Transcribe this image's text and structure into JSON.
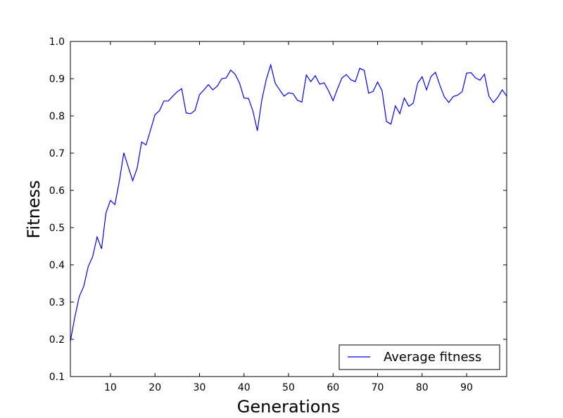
{
  "chart_data": {
    "type": "line",
    "xlabel": "Generations",
    "ylabel": "Fitness",
    "xlim": [
      1,
      99
    ],
    "ylim": [
      0.1,
      1.0
    ],
    "xticks": [
      "10",
      "20",
      "30",
      "40",
      "50",
      "60",
      "70",
      "80",
      "90"
    ],
    "yticks": [
      "0.1",
      "0.2",
      "0.3",
      "0.4",
      "0.5",
      "0.6",
      "0.7",
      "0.8",
      "0.9",
      "1.0"
    ],
    "grid": false,
    "legend_position": "bottom-right",
    "series": [
      {
        "name": "Average fitness",
        "color": "#0000ff",
        "x": [
          1,
          2,
          3,
          4,
          5,
          6,
          7,
          8,
          9,
          10,
          11,
          12,
          13,
          14,
          15,
          16,
          17,
          18,
          19,
          20,
          21,
          22,
          23,
          24,
          25,
          26,
          27,
          28,
          29,
          30,
          31,
          32,
          33,
          34,
          35,
          36,
          37,
          38,
          39,
          40,
          41,
          42,
          43,
          44,
          45,
          46,
          47,
          48,
          49,
          50,
          51,
          52,
          53,
          54,
          55,
          56,
          57,
          58,
          59,
          60,
          61,
          62,
          63,
          64,
          65,
          66,
          67,
          68,
          69,
          70,
          71,
          72,
          73,
          74,
          75,
          76,
          77,
          78,
          79,
          80,
          81,
          82,
          83,
          84,
          85,
          86,
          87,
          88,
          89,
          90,
          91,
          92,
          93,
          94,
          95,
          96,
          97,
          98,
          99
        ],
        "values": [
          0.195,
          0.26,
          0.315,
          0.342,
          0.395,
          0.422,
          0.475,
          0.443,
          0.54,
          0.573,
          0.562,
          0.625,
          0.701,
          0.663,
          0.626,
          0.66,
          0.73,
          0.722,
          0.762,
          0.803,
          0.814,
          0.84,
          0.84,
          0.853,
          0.865,
          0.873,
          0.808,
          0.806,
          0.815,
          0.857,
          0.87,
          0.884,
          0.87,
          0.88,
          0.9,
          0.902,
          0.923,
          0.912,
          0.888,
          0.848,
          0.847,
          0.813,
          0.76,
          0.843,
          0.898,
          0.937,
          0.888,
          0.87,
          0.853,
          0.862,
          0.86,
          0.842,
          0.837,
          0.91,
          0.892,
          0.908,
          0.885,
          0.889,
          0.867,
          0.841,
          0.873,
          0.902,
          0.911,
          0.897,
          0.892,
          0.928,
          0.922,
          0.861,
          0.866,
          0.891,
          0.868,
          0.785,
          0.778,
          0.827,
          0.806,
          0.848,
          0.826,
          0.834,
          0.888,
          0.905,
          0.87,
          0.906,
          0.917,
          0.882,
          0.851,
          0.836,
          0.852,
          0.856,
          0.865,
          0.915,
          0.916,
          0.902,
          0.896,
          0.912,
          0.853,
          0.836,
          0.85,
          0.87,
          0.853
        ]
      }
    ]
  }
}
